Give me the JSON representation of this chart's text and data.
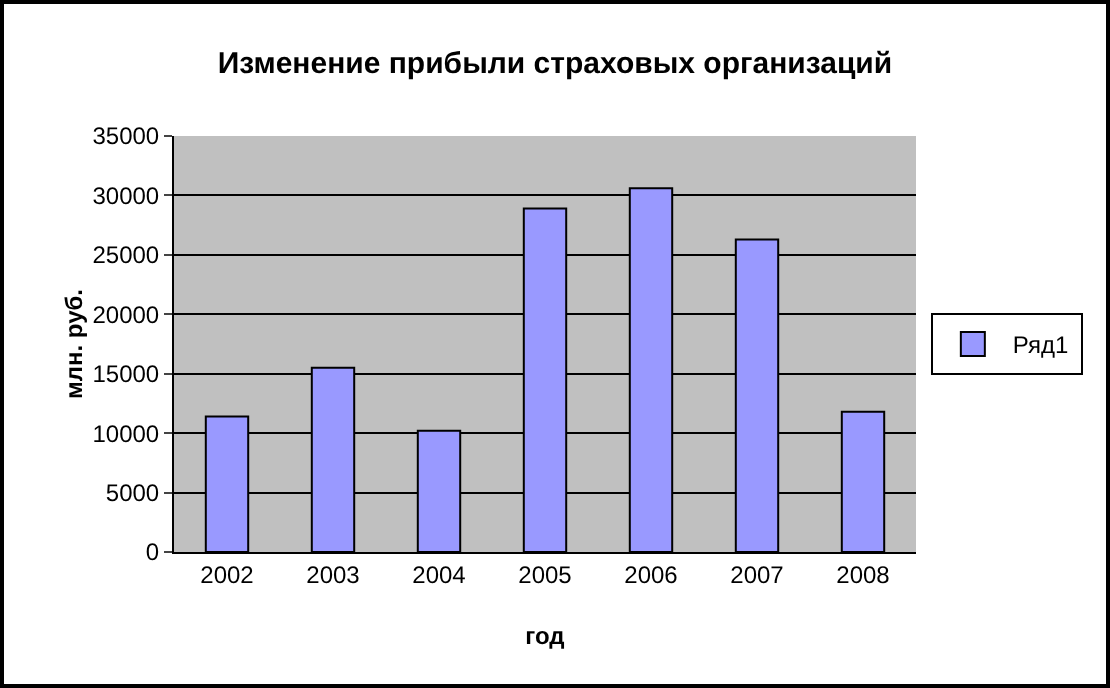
{
  "chart_data": {
    "type": "bar",
    "title": "Изменение прибыли страховых организаций",
    "xlabel": "год",
    "ylabel": "млн. руб.",
    "categories": [
      "2002",
      "2003",
      "2004",
      "2005",
      "2006",
      "2007",
      "2008"
    ],
    "series": [
      {
        "name": "Ряд1",
        "color": "#9999ff",
        "values": [
          11400,
          15500,
          10200,
          28900,
          30600,
          26300,
          11800
        ]
      }
    ],
    "ylim": [
      0,
      35000
    ],
    "yticks": [
      0,
      5000,
      10000,
      15000,
      20000,
      25000,
      30000,
      35000
    ],
    "grid": "y",
    "legend": "right"
  }
}
